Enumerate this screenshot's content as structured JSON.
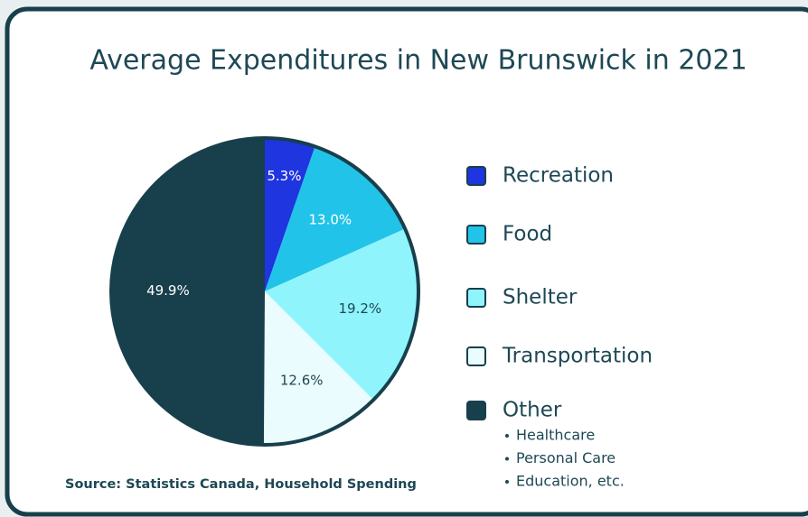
{
  "chart_data": {
    "type": "pie",
    "title": "Average Expenditures in New Brunswick in 2021",
    "categories": [
      "Recreation",
      "Food",
      "Shelter",
      "Transportation",
      "Other"
    ],
    "values": [
      5.3,
      13.0,
      19.2,
      12.6,
      49.9
    ],
    "value_labels": [
      "5.3%",
      "13.0%",
      "19.2%",
      "12.6%",
      "49.9%"
    ],
    "colors": [
      "#1f35e0",
      "#22c3e8",
      "#8ff4fc",
      "#eafcfd",
      "#173f4c"
    ],
    "other_items": [
      "Healthcare",
      "Personal Care",
      "Education, etc."
    ],
    "source": "Source: Statistics Canada, Household Spending",
    "legend": "right"
  }
}
